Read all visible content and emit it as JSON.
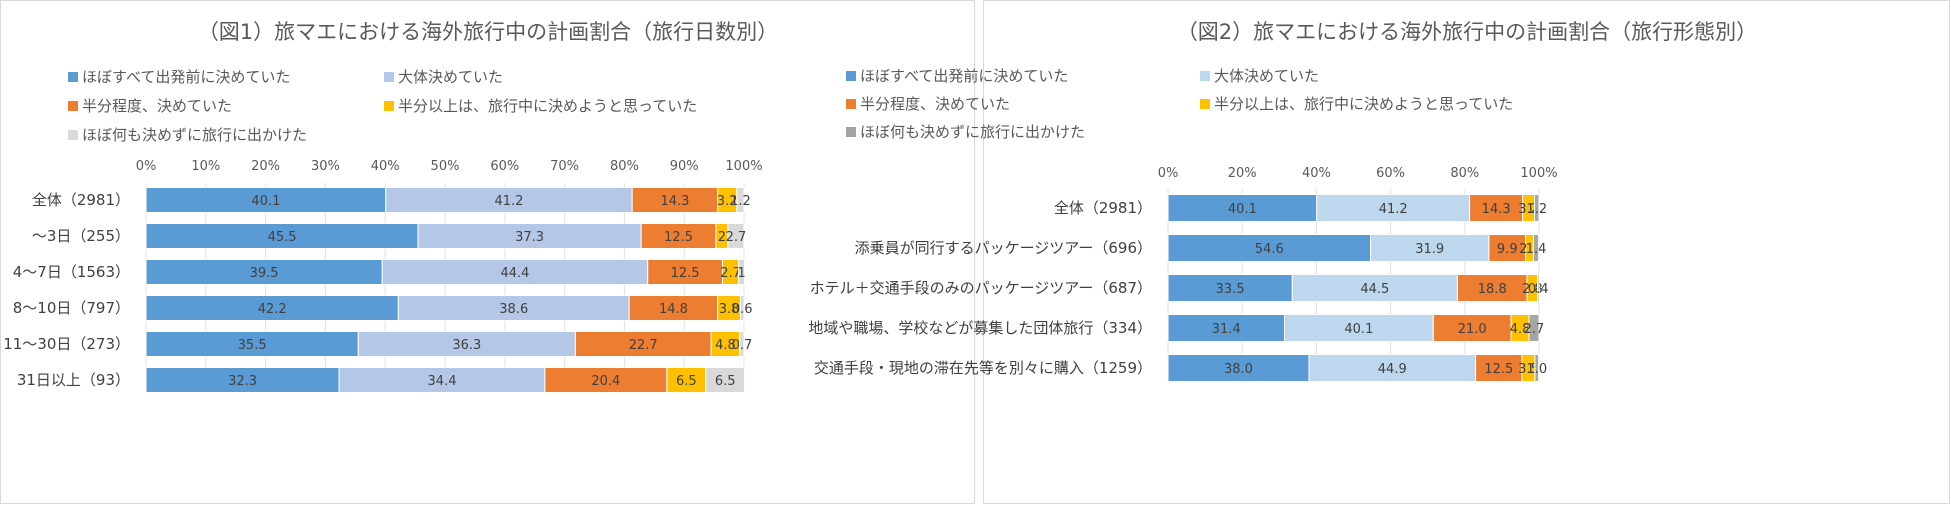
{
  "chart_data": [
    {
      "type": "bar",
      "orientation": "horizontal",
      "stacked": true,
      "title": "（図1）旅マエにおける海外旅行中の計画割合（旅行日数別）",
      "categories": [
        "全体（2981）",
        "〜3日（255）",
        "4〜7日（1563）",
        "8〜10日（797）",
        "11〜30日（273）",
        "31日以上（93）"
      ],
      "series": [
        {
          "name": "ほぼすべて出発前に決めていた",
          "color": "#5b9bd5",
          "values": [
            40.1,
            45.5,
            39.5,
            42.2,
            35.5,
            32.3
          ],
          "labels": [
            "40.1",
            "45.5",
            "39.5",
            "42.2",
            "35.5",
            "32.3"
          ]
        },
        {
          "name": "大体決めていた",
          "color": "#b4c7e7",
          "values": [
            41.2,
            37.3,
            44.4,
            38.6,
            36.3,
            34.4
          ],
          "labels": [
            "41.2",
            "37.3",
            "44.4",
            "38.6",
            "36.3",
            "34.4"
          ]
        },
        {
          "name": "半分程度、決めていた",
          "color": "#ed7d31",
          "values": [
            14.3,
            12.5,
            12.5,
            14.8,
            22.7,
            20.4
          ],
          "labels": [
            "14.3",
            "12.5",
            "12.5",
            "14.8",
            "22.7",
            "20.4"
          ]
        },
        {
          "name": "半分以上は、旅行中に決めようと思っていた",
          "color": "#ffc000",
          "values": [
            3.2,
            2.0,
            2.7,
            3.8,
            4.8,
            6.5
          ],
          "labels": [
            "3.2",
            "2",
            "2.7",
            "3.8",
            "4.8",
            "6.5"
          ]
        },
        {
          "name": "ほぼ何も決めずに旅行に出かけた",
          "color": "#d9d9d9",
          "values": [
            1.2,
            2.7,
            1.0,
            0.6,
            0.7,
            6.5
          ],
          "labels": [
            "1.2",
            "2.7",
            "1",
            "0.6",
            "0.7",
            "6.5"
          ]
        }
      ],
      "xticks": [
        "0%",
        "10%",
        "20%",
        "30%",
        "40%",
        "50%",
        "60%",
        "70%",
        "80%",
        "90%",
        "100%"
      ],
      "xlim": [
        0,
        100
      ],
      "legend_position": "top"
    },
    {
      "type": "bar",
      "orientation": "horizontal",
      "stacked": true,
      "title": "（図2）旅マエにおける海外旅行中の計画割合（旅行形態別）",
      "categories": [
        "全体（2981）",
        "添乗員が同行するパッケージツアー（696）",
        "ホテル＋交通手段のみのパッケージツアー（687）",
        "地域や職場、学校などが募集した団体旅行（334）",
        "交通手段・現地の滞在先等を別々に購入（1259）"
      ],
      "series": [
        {
          "name": "ほぼすべて出発前に決めていた",
          "color": "#5b9bd5",
          "values": [
            40.1,
            54.6,
            33.5,
            31.4,
            38.0
          ],
          "labels": [
            "40.1",
            "54.6",
            "33.5",
            "31.4",
            "38.0"
          ]
        },
        {
          "name": "大体決めていた",
          "color": "#bdd7ee",
          "values": [
            41.2,
            31.9,
            44.5,
            40.1,
            44.9
          ],
          "labels": [
            "41.2",
            "31.9",
            "44.5",
            "40.1",
            "44.9"
          ]
        },
        {
          "name": "半分程度、決めていた",
          "color": "#ed7d31",
          "values": [
            14.3,
            9.9,
            18.8,
            21.0,
            12.5
          ],
          "labels": [
            "14.3",
            "9.9",
            "18.8",
            "21.0",
            "12.5"
          ]
        },
        {
          "name": "半分以上は、旅行中に決めようと思っていた",
          "color": "#ffc000",
          "values": [
            3.2,
            2.1,
            2.8,
            4.8,
            3.5
          ],
          "labels": [
            "3.2",
            "2.1",
            "2.8",
            "4.8",
            "3.5"
          ]
        },
        {
          "name": "ほぼ何も決めずに旅行に出かけた",
          "color": "#a5a5a5",
          "values": [
            1.2,
            1.4,
            0.4,
            2.7,
            1.0
          ],
          "labels": [
            "1.2",
            "1.4",
            "0.4",
            "2.7",
            "1.0"
          ]
        }
      ],
      "xticks": [
        "0%",
        "20%",
        "40%",
        "60%",
        "80%",
        "100%"
      ],
      "xlim": [
        0,
        100
      ],
      "legend_position": "top"
    }
  ]
}
